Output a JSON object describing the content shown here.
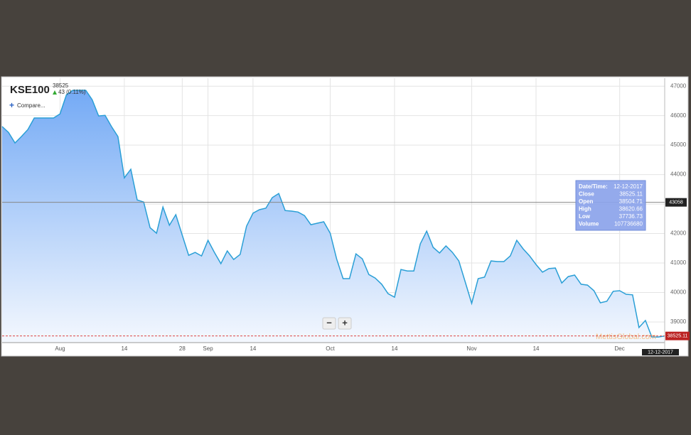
{
  "header": {
    "symbol": "KSE100",
    "price": "38525",
    "change": "43 (0.11%)",
    "compare": "Compare..."
  },
  "chart_data": {
    "type": "area",
    "color": "#2a9fd6",
    "categories": [
      null,
      null,
      null,
      null,
      null,
      null,
      null,
      null,
      null,
      "Aug",
      null,
      null,
      null,
      null,
      null,
      null,
      null,
      null,
      null,
      "14",
      null,
      null,
      null,
      null,
      null,
      null,
      null,
      null,
      "28",
      null,
      null,
      null,
      "Sep",
      null,
      null,
      null,
      null,
      null,
      null,
      "14",
      null,
      null,
      null,
      null,
      null,
      null,
      null,
      null,
      null,
      null,
      null,
      "Oct",
      null,
      null,
      null,
      null,
      null,
      null,
      null,
      null,
      null,
      "14",
      null,
      null,
      null,
      null,
      null,
      null,
      null,
      null,
      null,
      null,
      null,
      "Nov",
      null,
      null,
      null,
      null,
      null,
      null,
      null,
      null,
      null,
      "14",
      null,
      null,
      null,
      null,
      null,
      null,
      null,
      null,
      null,
      null,
      null,
      null,
      "Dec",
      null,
      null,
      null,
      null,
      null,
      null,
      null
    ],
    "values": [
      45630,
      45430,
      45070,
      45290,
      45530,
      45920,
      45920,
      45920,
      45920,
      46060,
      46710,
      46860,
      46860,
      46860,
      46540,
      45990,
      46010,
      45630,
      45290,
      43890,
      44180,
      43140,
      43070,
      42200,
      42010,
      42900,
      42280,
      42640,
      41940,
      41260,
      41360,
      41240,
      41770,
      41360,
      40980,
      41410,
      41120,
      41290,
      42250,
      42690,
      42810,
      42860,
      43220,
      43360,
      42780,
      42760,
      42730,
      42610,
      42300,
      42350,
      42400,
      42010,
      41140,
      40470,
      40470,
      41310,
      41140,
      40610,
      40490,
      40280,
      39960,
      39840,
      40780,
      40730,
      40730,
      41650,
      42080,
      41530,
      41340,
      41580,
      41360,
      41070,
      40350,
      39630,
      40470,
      40520,
      41070,
      41050,
      41050,
      41240,
      41770,
      41480,
      41240,
      40950,
      40690,
      40810,
      40830,
      40320,
      40540,
      40590,
      40280,
      40250,
      40060,
      39650,
      39700,
      40040,
      40060,
      39940,
      39920,
      38810,
      39050,
      38490,
      38490,
      38525.11
    ],
    "ylim": [
      38300,
      47270
    ],
    "yticks": [
      39000,
      40000,
      41000,
      42000,
      43000,
      44000,
      45000,
      46000,
      47000
    ],
    "grid": true,
    "crosshair": 43058,
    "date_label": "12-12-2017",
    "watermark": "MettisGlobal.com"
  },
  "tooltip": {
    "rows": [
      [
        "Date/Time:",
        "12-12-2017"
      ],
      [
        "Close",
        "38525.11"
      ],
      [
        "Open",
        "38504.71"
      ],
      [
        "High",
        "38620.66"
      ],
      [
        "Low",
        "37736.73"
      ],
      [
        "Volume",
        "107736680"
      ]
    ]
  },
  "zoom": {
    "out": "−",
    "in": "+"
  }
}
